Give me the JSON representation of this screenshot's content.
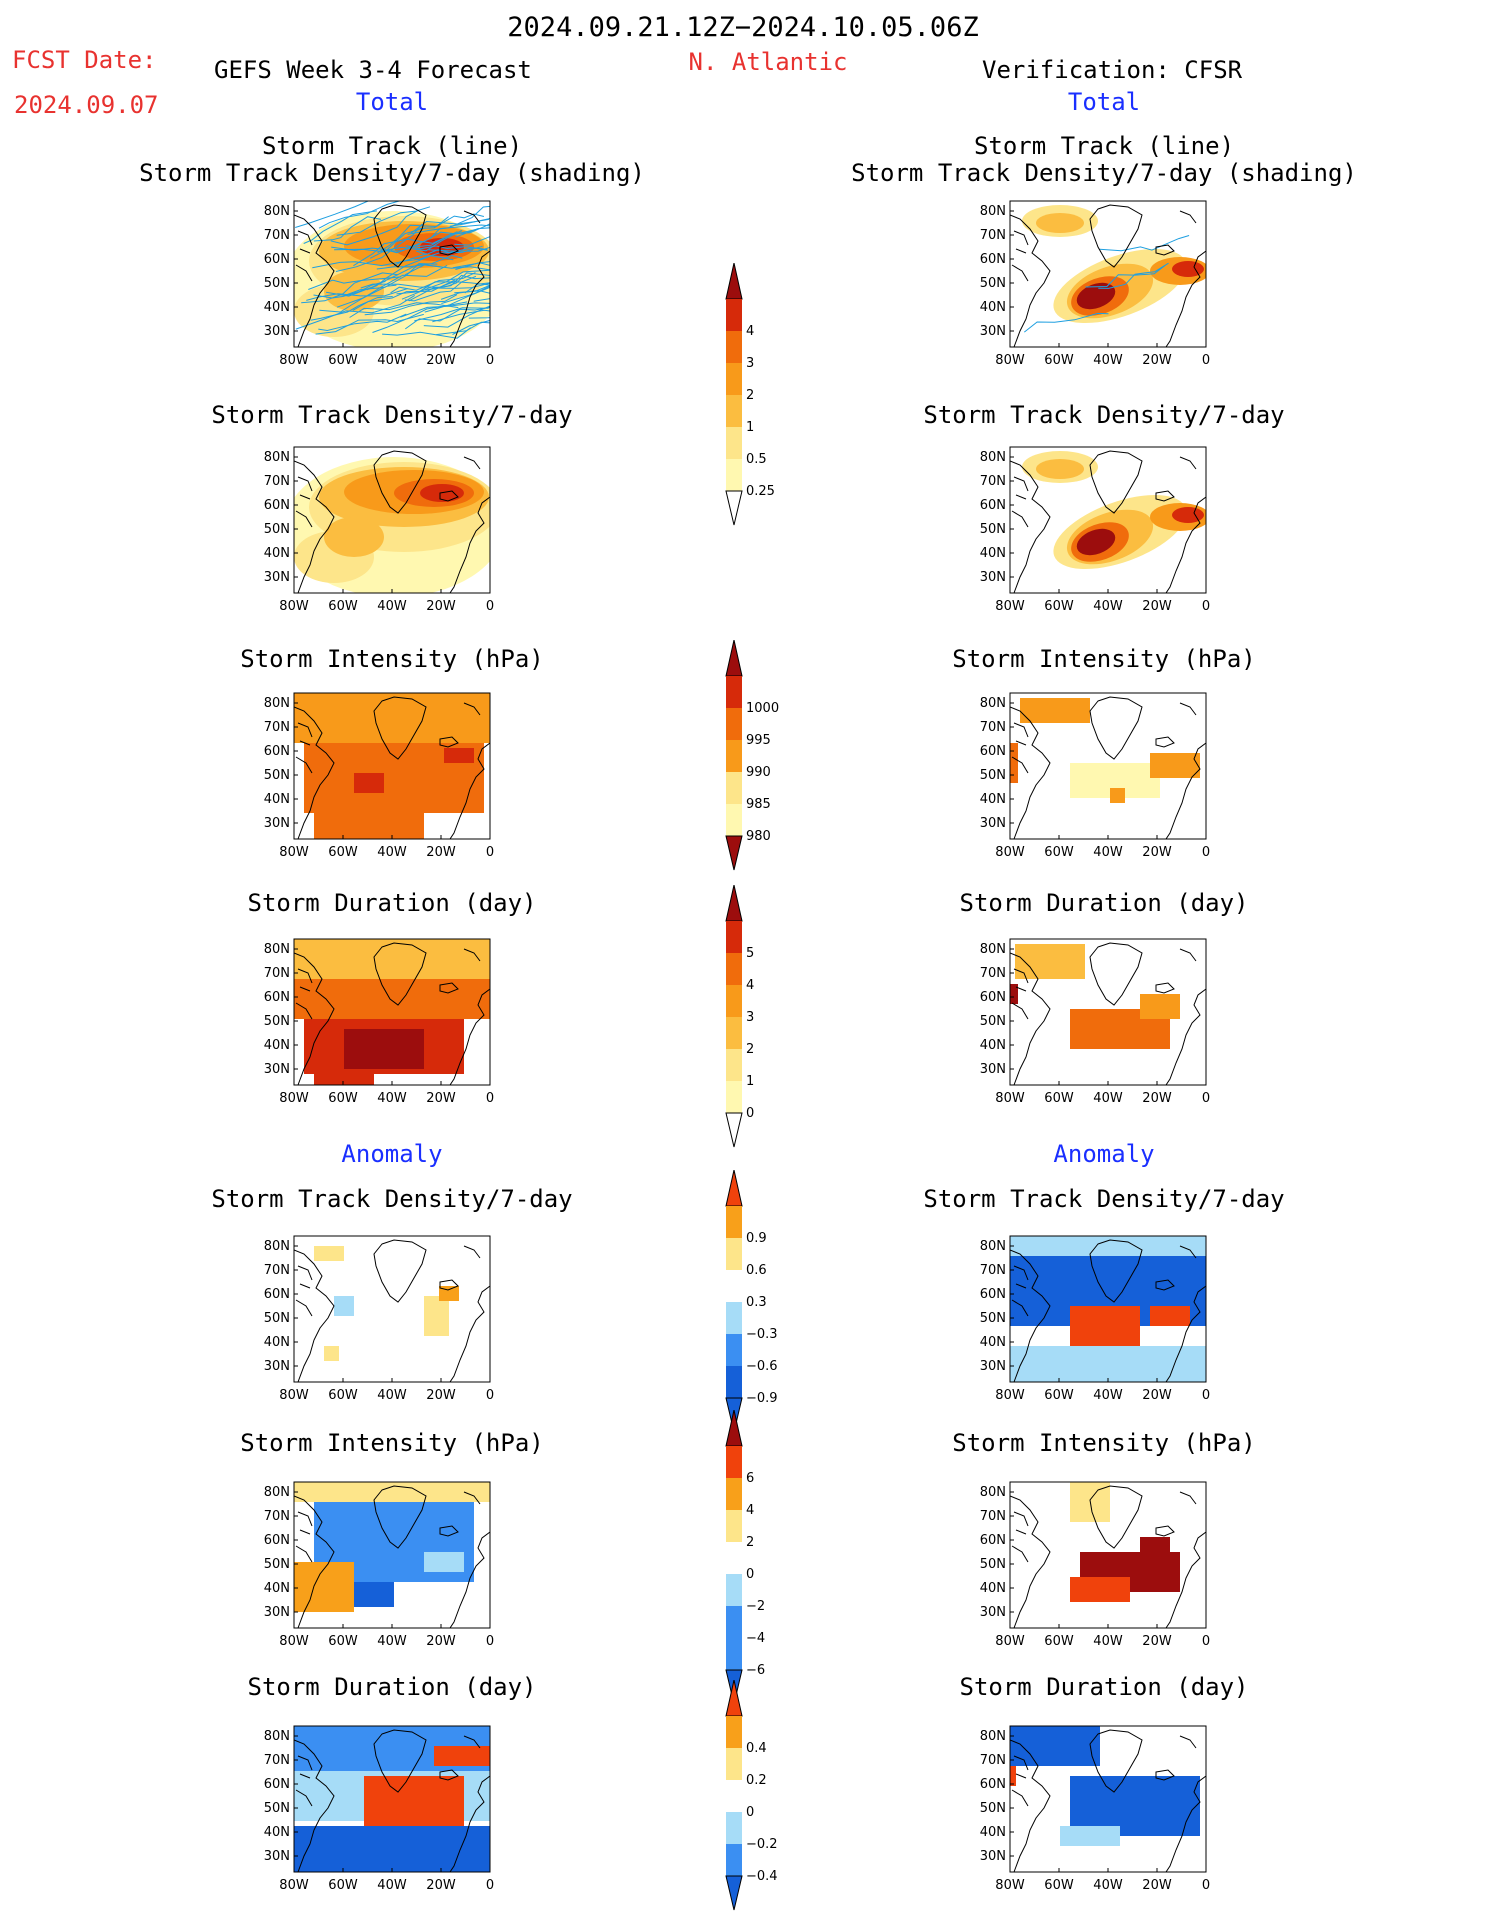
{
  "header": {
    "period": "2024.09.21.12Z−2024.10.05.06Z",
    "fcst_label": "FCST Date:",
    "fcst_date": "2024.09.07",
    "forecast_title": "GEFS Week 3-4 Forecast",
    "region": "N. Atlantic",
    "verification": "Verification: CFSR"
  },
  "sections": {
    "total_left": "Total",
    "total_right": "Total",
    "anomaly_left": "Anomaly",
    "anomaly_right": "Anomaly"
  },
  "panels": {
    "track_line": "Storm Track (line)",
    "track_shading": "Storm Track Density/7-day (shading)",
    "density": "Storm Track Density/7-day",
    "intensity": "Storm Intensity (hPa)",
    "duration": "Storm Duration (day)"
  },
  "axes": {
    "lat_labels": [
      "80N",
      "70N",
      "60N",
      "50N",
      "40N",
      "30N"
    ],
    "lon_labels": [
      "80W",
      "60W",
      "40W",
      "20W",
      "0"
    ]
  },
  "colorbars": {
    "density": [
      "4",
      "3",
      "2",
      "1",
      "0.5",
      "0.25"
    ],
    "intensity": [
      "1000",
      "995",
      "990",
      "985",
      "980"
    ],
    "duration": [
      "5",
      "4",
      "3",
      "2",
      "1",
      "0"
    ],
    "density_anom": [
      "0.9",
      "0.6",
      "0.3",
      "−0.3",
      "−0.6",
      "−0.9"
    ],
    "intensity_anom": [
      "6",
      "4",
      "2",
      "0",
      "−2",
      "−4",
      "−6"
    ],
    "duration_anom": [
      "0.4",
      "0.2",
      "0",
      "−0.2",
      "−0.4"
    ]
  },
  "colors": {
    "title_red": "#e8322f",
    "section_blue": "#1a2fff",
    "density_scale": [
      "#fff8b0",
      "#fde58a",
      "#fbbd40",
      "#f89a1a",
      "#f06c0c",
      "#d62a0a",
      "#9c0d0d"
    ],
    "anomaly_scale": [
      "#1560d8",
      "#3b8ff2",
      "#a6dcf7",
      "#ffffff",
      "#fde58a",
      "#f8a01a",
      "#f0420c"
    ]
  }
}
